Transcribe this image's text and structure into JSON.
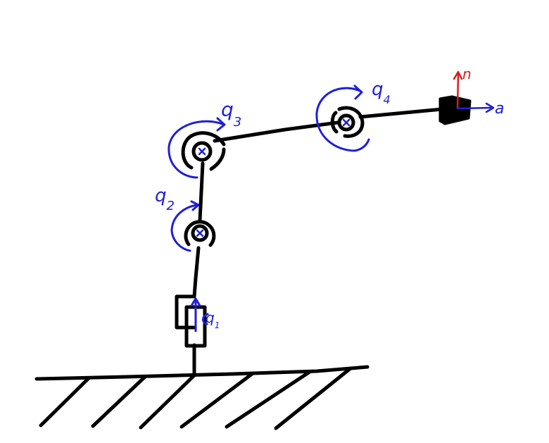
{
  "colors": {
    "link": "#000000",
    "joint_annotation": "#1f1fd6",
    "approach_axis": "#1f1fd6",
    "normal_axis": "#d61f1f",
    "background": "#ffffff"
  },
  "joints": [
    {
      "id": "q1",
      "letter": "q",
      "index": "1",
      "type": "prismatic"
    },
    {
      "id": "q2",
      "letter": "q",
      "index": "2",
      "type": "revolute"
    },
    {
      "id": "q3",
      "letter": "q",
      "index": "3",
      "type": "revolute"
    },
    {
      "id": "q4",
      "letter": "q",
      "index": "4",
      "type": "revolute"
    }
  ],
  "end_effector": {
    "axes": [
      {
        "id": "n",
        "label": "n"
      },
      {
        "id": "a",
        "label": "a"
      }
    ]
  },
  "icons": {
    "ground": "ground-hatch-icon",
    "revolute_joint": "revolute-joint-icon",
    "prismatic_joint": "prismatic-joint-icon",
    "gripper": "gripper-icon"
  }
}
